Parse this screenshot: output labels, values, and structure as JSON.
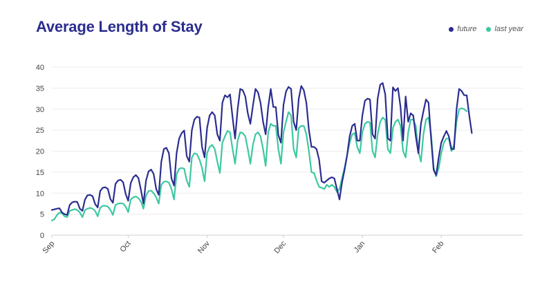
{
  "chart_data": {
    "type": "line",
    "title": "Average Length of Stay",
    "xlabel": "",
    "ylabel": "",
    "ylim": [
      0,
      40
    ],
    "yticks": [
      0,
      5,
      10,
      15,
      20,
      25,
      30,
      35,
      40
    ],
    "x_tick_labels": [
      "Sep",
      "Oct",
      "Nov",
      "Dec",
      "Jan",
      "Feb"
    ],
    "x_tick_day": [
      0,
      30,
      61,
      91,
      122,
      153
    ],
    "x_range_days": [
      0,
      185
    ],
    "grid": "horizontal",
    "legend_position": "top-right",
    "series": [
      {
        "name": "future",
        "color": "#2b2d8f",
        "points": [
          [
            0,
            6.0
          ],
          [
            2,
            6.3
          ],
          [
            3,
            6.4
          ],
          [
            4,
            5.4
          ],
          [
            5,
            5.0
          ],
          [
            6,
            4.8
          ],
          [
            7,
            7.2
          ],
          [
            8,
            7.8
          ],
          [
            9,
            8.0
          ],
          [
            10,
            7.9
          ],
          [
            11,
            6.3
          ],
          [
            12,
            5.8
          ],
          [
            13,
            8.5
          ],
          [
            14,
            9.5
          ],
          [
            15,
            9.6
          ],
          [
            16,
            9.3
          ],
          [
            17,
            7.4
          ],
          [
            18,
            6.6
          ],
          [
            19,
            10.5
          ],
          [
            20,
            11.3
          ],
          [
            21,
            11.4
          ],
          [
            22,
            11.0
          ],
          [
            23,
            8.6
          ],
          [
            24,
            7.7
          ],
          [
            25,
            12.2
          ],
          [
            26,
            13.0
          ],
          [
            27,
            13.2
          ],
          [
            28,
            12.6
          ],
          [
            29,
            9.8
          ],
          [
            30,
            8.2
          ],
          [
            31,
            12.4
          ],
          [
            32,
            13.8
          ],
          [
            33,
            14.3
          ],
          [
            34,
            13.6
          ],
          [
            35,
            10.8
          ],
          [
            36,
            7.5
          ],
          [
            37,
            13.0
          ],
          [
            38,
            15.2
          ],
          [
            39,
            15.6
          ],
          [
            40,
            14.6
          ],
          [
            41,
            11.0
          ],
          [
            42,
            9.6
          ],
          [
            43,
            17.5
          ],
          [
            44,
            20.5
          ],
          [
            45,
            20.8
          ],
          [
            46,
            19.5
          ],
          [
            47,
            13.5
          ],
          [
            48,
            11.8
          ],
          [
            49,
            19.5
          ],
          [
            50,
            23.0
          ],
          [
            51,
            24.3
          ],
          [
            52,
            24.9
          ],
          [
            53,
            18.8
          ],
          [
            54,
            17.5
          ],
          [
            55,
            25.0
          ],
          [
            56,
            27.5
          ],
          [
            57,
            28.2
          ],
          [
            58,
            28.0
          ],
          [
            59,
            21.0
          ],
          [
            60,
            18.5
          ],
          [
            61,
            25.5
          ],
          [
            62,
            28.5
          ],
          [
            63,
            29.3
          ],
          [
            64,
            28.5
          ],
          [
            65,
            24.0
          ],
          [
            66,
            22.5
          ],
          [
            67,
            31.5
          ],
          [
            68,
            33.3
          ],
          [
            69,
            32.8
          ],
          [
            70,
            33.5
          ],
          [
            71,
            28.0
          ],
          [
            72,
            23.0
          ],
          [
            73,
            30.0
          ],
          [
            74,
            34.8
          ],
          [
            75,
            34.5
          ],
          [
            76,
            33.0
          ],
          [
            77,
            29.0
          ],
          [
            78,
            26.5
          ],
          [
            79,
            30.8
          ],
          [
            80,
            34.8
          ],
          [
            81,
            34.0
          ],
          [
            82,
            31.5
          ],
          [
            83,
            27.0
          ],
          [
            84,
            24.0
          ],
          [
            85,
            30.5
          ],
          [
            86,
            34.8
          ],
          [
            87,
            30.5
          ],
          [
            88,
            30.5
          ],
          [
            89,
            23.8
          ],
          [
            90,
            22.0
          ],
          [
            91,
            31.0
          ],
          [
            92,
            34.2
          ],
          [
            93,
            35.3
          ],
          [
            94,
            34.8
          ],
          [
            95,
            27.0
          ],
          [
            96,
            25.0
          ],
          [
            97,
            32.5
          ],
          [
            98,
            35.5
          ],
          [
            99,
            34.5
          ],
          [
            100,
            31.5
          ],
          [
            101,
            25.0
          ],
          [
            102,
            21.0
          ],
          [
            103,
            21.0
          ],
          [
            104,
            20.5
          ],
          [
            105,
            18.0
          ],
          [
            106,
            12.8
          ],
          [
            107,
            12.5
          ],
          [
            108,
            13.0
          ],
          [
            109,
            13.5
          ],
          [
            110,
            13.8
          ],
          [
            111,
            13.5
          ],
          [
            112,
            11.0
          ],
          [
            113,
            8.5
          ],
          [
            114,
            12.5
          ],
          [
            115,
            15.5
          ],
          [
            116,
            19.0
          ],
          [
            117,
            23.5
          ],
          [
            118,
            26.0
          ],
          [
            119,
            26.5
          ],
          [
            120,
            22.5
          ],
          [
            121,
            22.5
          ],
          [
            122,
            28.5
          ],
          [
            123,
            32.0
          ],
          [
            124,
            32.5
          ],
          [
            125,
            32.3
          ],
          [
            126,
            24.0
          ],
          [
            127,
            23.0
          ],
          [
            128,
            32.5
          ],
          [
            129,
            35.8
          ],
          [
            130,
            36.2
          ],
          [
            131,
            33.5
          ],
          [
            132,
            23.0
          ],
          [
            133,
            22.5
          ],
          [
            134,
            35.2
          ],
          [
            135,
            34.3
          ],
          [
            136,
            35.0
          ],
          [
            137,
            30.5
          ],
          [
            138,
            22.5
          ],
          [
            139,
            33.0
          ],
          [
            140,
            27.0
          ],
          [
            141,
            29.0
          ],
          [
            142,
            28.5
          ],
          [
            143,
            23.5
          ],
          [
            144,
            19.5
          ],
          [
            145,
            26.5
          ],
          [
            146,
            29.5
          ],
          [
            147,
            32.3
          ],
          [
            148,
            31.5
          ],
          [
            149,
            23.0
          ],
          [
            150,
            15.5
          ],
          [
            151,
            14.3
          ],
          [
            152,
            18.5
          ],
          [
            153,
            22.0
          ],
          [
            154,
            23.5
          ],
          [
            155,
            24.8
          ],
          [
            156,
            23.5
          ],
          [
            157,
            20.5
          ],
          [
            158,
            20.5
          ],
          [
            159,
            30.0
          ],
          [
            160,
            34.8
          ],
          [
            161,
            34.3
          ],
          [
            162,
            33.3
          ],
          [
            163,
            33.3
          ],
          [
            164,
            28.5
          ],
          [
            165,
            24.3
          ]
        ]
      },
      {
        "name": "last year",
        "color": "#3dc8a0",
        "points": [
          [
            0,
            3.5
          ],
          [
            1,
            3.8
          ],
          [
            2,
            4.8
          ],
          [
            3,
            5.4
          ],
          [
            4,
            5.2
          ],
          [
            5,
            4.5
          ],
          [
            6,
            4.3
          ],
          [
            7,
            5.8
          ],
          [
            8,
            6.0
          ],
          [
            9,
            6.2
          ],
          [
            10,
            6.0
          ],
          [
            11,
            5.4
          ],
          [
            12,
            4.3
          ],
          [
            13,
            6.0
          ],
          [
            14,
            6.3
          ],
          [
            15,
            6.5
          ],
          [
            16,
            6.3
          ],
          [
            17,
            5.8
          ],
          [
            18,
            4.5
          ],
          [
            19,
            6.5
          ],
          [
            20,
            7.0
          ],
          [
            21,
            7.0
          ],
          [
            22,
            6.8
          ],
          [
            23,
            6.0
          ],
          [
            24,
            4.8
          ],
          [
            25,
            7.2
          ],
          [
            26,
            7.5
          ],
          [
            27,
            7.6
          ],
          [
            28,
            7.5
          ],
          [
            29,
            6.8
          ],
          [
            30,
            5.5
          ],
          [
            31,
            8.5
          ],
          [
            32,
            9.0
          ],
          [
            33,
            9.2
          ],
          [
            34,
            8.8
          ],
          [
            35,
            8.0
          ],
          [
            36,
            6.3
          ],
          [
            37,
            9.5
          ],
          [
            38,
            10.5
          ],
          [
            39,
            10.6
          ],
          [
            40,
            10.0
          ],
          [
            41,
            9.0
          ],
          [
            42,
            7.5
          ],
          [
            43,
            12.0
          ],
          [
            44,
            12.7
          ],
          [
            45,
            12.8
          ],
          [
            46,
            12.5
          ],
          [
            47,
            11.0
          ],
          [
            48,
            8.5
          ],
          [
            49,
            14.5
          ],
          [
            50,
            15.8
          ],
          [
            51,
            16.0
          ],
          [
            52,
            15.8
          ],
          [
            53,
            13.0
          ],
          [
            54,
            11.5
          ],
          [
            55,
            18.5
          ],
          [
            56,
            19.5
          ],
          [
            57,
            19.3
          ],
          [
            58,
            18.0
          ],
          [
            59,
            16.0
          ],
          [
            60,
            12.8
          ],
          [
            61,
            19.5
          ],
          [
            62,
            21.0
          ],
          [
            63,
            21.5
          ],
          [
            64,
            20.5
          ],
          [
            65,
            17.5
          ],
          [
            66,
            14.8
          ],
          [
            67,
            22.0
          ],
          [
            68,
            23.5
          ],
          [
            69,
            24.8
          ],
          [
            70,
            24.5
          ],
          [
            71,
            20.5
          ],
          [
            72,
            17.0
          ],
          [
            73,
            22.5
          ],
          [
            74,
            24.5
          ],
          [
            75,
            24.3
          ],
          [
            76,
            23.5
          ],
          [
            77,
            20.5
          ],
          [
            78,
            17.0
          ],
          [
            79,
            21.5
          ],
          [
            80,
            24.0
          ],
          [
            81,
            24.5
          ],
          [
            82,
            23.5
          ],
          [
            83,
            20.5
          ],
          [
            84,
            16.5
          ],
          [
            85,
            24.5
          ],
          [
            86,
            26.5
          ],
          [
            87,
            26.0
          ],
          [
            88,
            26.0
          ],
          [
            89,
            20.5
          ],
          [
            90,
            17.0
          ],
          [
            91,
            24.5
          ],
          [
            92,
            27.0
          ],
          [
            93,
            29.3
          ],
          [
            94,
            28.5
          ],
          [
            95,
            20.5
          ],
          [
            96,
            18.5
          ],
          [
            97,
            25.5
          ],
          [
            98,
            26.0
          ],
          [
            99,
            26.0
          ],
          [
            100,
            24.0
          ],
          [
            101,
            20.0
          ],
          [
            102,
            15.0
          ],
          [
            103,
            14.8
          ],
          [
            104,
            13.0
          ],
          [
            105,
            11.5
          ],
          [
            106,
            11.3
          ],
          [
            107,
            11.0
          ],
          [
            108,
            12.0
          ],
          [
            109,
            11.5
          ],
          [
            110,
            12.0
          ],
          [
            111,
            11.5
          ],
          [
            112,
            10.3
          ],
          [
            113,
            11.0
          ],
          [
            114,
            13.5
          ],
          [
            115,
            16.0
          ],
          [
            116,
            19.0
          ],
          [
            117,
            22.0
          ],
          [
            118,
            24.0
          ],
          [
            119,
            24.3
          ],
          [
            120,
            21.0
          ],
          [
            121,
            19.5
          ],
          [
            122,
            24.5
          ],
          [
            123,
            26.5
          ],
          [
            124,
            27.0
          ],
          [
            125,
            26.8
          ],
          [
            126,
            20.0
          ],
          [
            127,
            18.5
          ],
          [
            128,
            24.0
          ],
          [
            129,
            27.0
          ],
          [
            130,
            28.0
          ],
          [
            131,
            27.5
          ],
          [
            132,
            20.5
          ],
          [
            133,
            19.5
          ],
          [
            134,
            25.5
          ],
          [
            135,
            27.0
          ],
          [
            136,
            27.5
          ],
          [
            137,
            26.0
          ],
          [
            138,
            20.0
          ],
          [
            139,
            18.5
          ],
          [
            140,
            24.5
          ],
          [
            141,
            27.5
          ],
          [
            142,
            27.5
          ],
          [
            143,
            26.0
          ],
          [
            144,
            20.0
          ],
          [
            145,
            17.5
          ],
          [
            146,
            24.0
          ],
          [
            147,
            27.5
          ],
          [
            148,
            28.0
          ],
          [
            149,
            24.0
          ],
          [
            150,
            16.0
          ],
          [
            151,
            14.0
          ],
          [
            152,
            16.0
          ],
          [
            153,
            19.5
          ],
          [
            154,
            22.0
          ],
          [
            155,
            23.0
          ],
          [
            156,
            23.0
          ],
          [
            157,
            20.0
          ],
          [
            158,
            21.5
          ],
          [
            159,
            27.0
          ],
          [
            160,
            30.0
          ],
          [
            161,
            30.2
          ],
          [
            162,
            30.0
          ],
          [
            163,
            29.5
          ]
        ]
      }
    ]
  }
}
